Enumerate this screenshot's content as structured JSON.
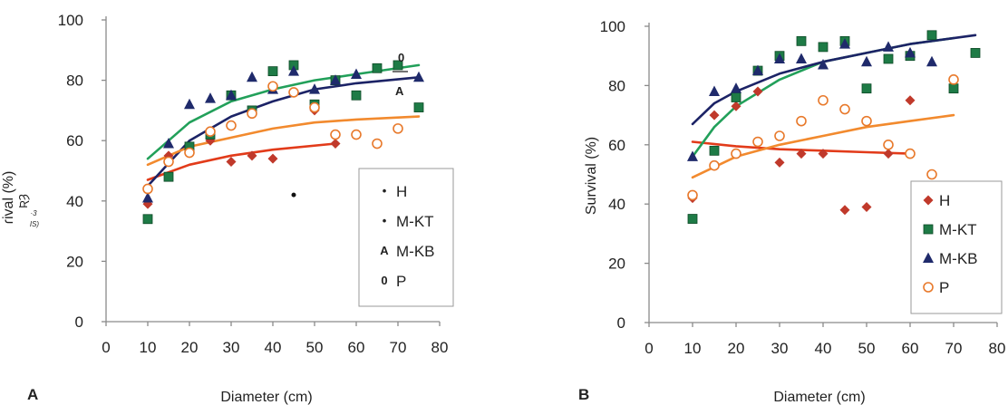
{
  "colors": {
    "H": "#c0392b",
    "M-KT": "#1e7b46",
    "M-KB": "#1f2a6b",
    "P": "#e8792b",
    "H_line": "#e23b1a",
    "M-KT_line": "#22a05a",
    "M-KB_line": "#1c2366",
    "P_line": "#f28a2e",
    "axis": "#8a8a8a"
  },
  "panels": {
    "A": {
      "letter": "A",
      "xlabel": "Diameter (cm)",
      "ylabel_fragments": [
        "ɾival (%)",
        "ƦȜ",
        "·3",
        "IS)"
      ],
      "legend": [
        {
          "symbol": "•",
          "label": "H"
        },
        {
          "symbol": "•",
          "label": "M-KT"
        },
        {
          "symbol": "A",
          "label": "M-KB"
        },
        {
          "symbol": "0",
          "label": "P"
        }
      ],
      "inplot_marks": [
        "0",
        "A"
      ]
    },
    "B": {
      "letter": "B",
      "xlabel": "Diameter (cm)",
      "ylabel": "Survival (%)",
      "legend": [
        {
          "symbol": "diamond",
          "label": "H"
        },
        {
          "symbol": "square",
          "label": "M-KT"
        },
        {
          "symbol": "triangle",
          "label": "M-KB"
        },
        {
          "symbol": "circle",
          "label": "P"
        }
      ]
    }
  },
  "chart_data": [
    {
      "type": "scatter",
      "panel": "A",
      "xlabel": "Diameter (cm)",
      "ylabel": "",
      "xlim": [
        0,
        80
      ],
      "ylim": [
        0,
        100
      ],
      "xticks": [
        0,
        10,
        20,
        30,
        40,
        50,
        60,
        70,
        80
      ],
      "yticks": [
        0,
        20,
        40,
        60,
        80,
        100
      ],
      "legend_position": "lower-right",
      "grid": false,
      "series": [
        {
          "name": "H",
          "marker": "diamond",
          "points": [
            [
              10,
              39
            ],
            [
              15,
              55
            ],
            [
              20,
              57
            ],
            [
              25,
              60
            ],
            [
              30,
              53
            ],
            [
              35,
              55
            ],
            [
              40,
              54
            ],
            [
              50,
              70
            ],
            [
              55,
              59
            ]
          ],
          "trend": [
            [
              10,
              47
            ],
            [
              20,
              52
            ],
            [
              30,
              55
            ],
            [
              40,
              57
            ],
            [
              55,
              59
            ]
          ]
        },
        {
          "name": "M-KT",
          "marker": "square",
          "points": [
            [
              10,
              34
            ],
            [
              15,
              48
            ],
            [
              20,
              58
            ],
            [
              25,
              62
            ],
            [
              30,
              75
            ],
            [
              35,
              70
            ],
            [
              40,
              83
            ],
            [
              45,
              85
            ],
            [
              50,
              72
            ],
            [
              55,
              80
            ],
            [
              60,
              75
            ],
            [
              65,
              84
            ],
            [
              70,
              85
            ],
            [
              75,
              71
            ]
          ],
          "trend": [
            [
              10,
              54
            ],
            [
              20,
              66
            ],
            [
              30,
              73
            ],
            [
              40,
              77
            ],
            [
              50,
              80
            ],
            [
              60,
              82
            ],
            [
              75,
              85
            ]
          ]
        },
        {
          "name": "M-KB",
          "marker": "triangle",
          "points": [
            [
              10,
              41
            ],
            [
              15,
              59
            ],
            [
              20,
              72
            ],
            [
              25,
              74
            ],
            [
              30,
              75
            ],
            [
              35,
              81
            ],
            [
              40,
              77
            ],
            [
              45,
              83
            ],
            [
              50,
              77
            ],
            [
              55,
              80
            ],
            [
              60,
              82
            ],
            [
              75,
              81
            ]
          ],
          "trend": [
            [
              10,
              45
            ],
            [
              20,
              60
            ],
            [
              30,
              68
            ],
            [
              40,
              73
            ],
            [
              50,
              77
            ],
            [
              60,
              79
            ],
            [
              75,
              81
            ]
          ]
        },
        {
          "name": "P",
          "marker": "circle",
          "points": [
            [
              10,
              44
            ],
            [
              15,
              53
            ],
            [
              20,
              56
            ],
            [
              25,
              63
            ],
            [
              30,
              65
            ],
            [
              35,
              69
            ],
            [
              40,
              78
            ],
            [
              45,
              76
            ],
            [
              50,
              71
            ],
            [
              55,
              62
            ],
            [
              60,
              62
            ],
            [
              65,
              59
            ],
            [
              70,
              64
            ]
          ],
          "trend": [
            [
              10,
              52
            ],
            [
              20,
              58
            ],
            [
              30,
              61
            ],
            [
              40,
              64
            ],
            [
              50,
              66
            ],
            [
              60,
              67
            ],
            [
              75,
              68
            ]
          ]
        }
      ],
      "extra_points": [
        [
          45,
          42
        ]
      ]
    },
    {
      "type": "scatter",
      "panel": "B",
      "xlabel": "Diameter (cm)",
      "ylabel": "Survival (%)",
      "xlim": [
        0,
        80
      ],
      "ylim": [
        0,
        100
      ],
      "xticks": [
        0,
        10,
        20,
        30,
        40,
        50,
        60,
        70,
        80
      ],
      "yticks": [
        0,
        20,
        40,
        60,
        80,
        100
      ],
      "legend_position": "lower-right",
      "grid": false,
      "series": [
        {
          "name": "H",
          "marker": "diamond",
          "points": [
            [
              10,
              42
            ],
            [
              15,
              70
            ],
            [
              20,
              73
            ],
            [
              25,
              78
            ],
            [
              30,
              54
            ],
            [
              35,
              57
            ],
            [
              40,
              57
            ],
            [
              45,
              38
            ],
            [
              50,
              39
            ],
            [
              55,
              57
            ],
            [
              60,
              75
            ]
          ],
          "trend": [
            [
              10,
              61
            ],
            [
              20,
              59.5
            ],
            [
              30,
              58.5
            ],
            [
              40,
              58
            ],
            [
              50,
              57.5
            ],
            [
              60,
              57
            ]
          ]
        },
        {
          "name": "M-KT",
          "marker": "square",
          "points": [
            [
              10,
              35
            ],
            [
              15,
              58
            ],
            [
              20,
              76
            ],
            [
              25,
              85
            ],
            [
              30,
              90
            ],
            [
              35,
              95
            ],
            [
              40,
              93
            ],
            [
              45,
              95
            ],
            [
              50,
              79
            ],
            [
              55,
              89
            ],
            [
              60,
              90
            ],
            [
              65,
              97
            ],
            [
              70,
              79
            ],
            [
              75,
              91
            ]
          ],
          "trend": [
            [
              10,
              56
            ],
            [
              15,
              66
            ],
            [
              20,
              73
            ],
            [
              30,
              82
            ],
            [
              40,
              88
            ],
            [
              50,
              91
            ],
            [
              60,
              94
            ],
            [
              70,
              96
            ]
          ]
        },
        {
          "name": "M-KB",
          "marker": "triangle",
          "points": [
            [
              10,
              56
            ],
            [
              15,
              78
            ],
            [
              20,
              79
            ],
            [
              25,
              85
            ],
            [
              30,
              89
            ],
            [
              35,
              89
            ],
            [
              40,
              87
            ],
            [
              45,
              94
            ],
            [
              50,
              88
            ],
            [
              55,
              93
            ],
            [
              60,
              91
            ],
            [
              65,
              88
            ]
          ],
          "trend": [
            [
              10,
              67
            ],
            [
              15,
              74
            ],
            [
              20,
              78
            ],
            [
              30,
              84
            ],
            [
              40,
              88
            ],
            [
              50,
              91
            ],
            [
              60,
              94
            ],
            [
              75,
              97
            ]
          ]
        },
        {
          "name": "P",
          "marker": "circle",
          "points": [
            [
              10,
              43
            ],
            [
              15,
              53
            ],
            [
              20,
              57
            ],
            [
              25,
              61
            ],
            [
              30,
              63
            ],
            [
              35,
              68
            ],
            [
              40,
              75
            ],
            [
              45,
              72
            ],
            [
              50,
              68
            ],
            [
              55,
              60
            ],
            [
              60,
              57
            ],
            [
              65,
              50
            ],
            [
              70,
              82
            ]
          ],
          "trend": [
            [
              10,
              49
            ],
            [
              20,
              56
            ],
            [
              30,
              60
            ],
            [
              40,
              63
            ],
            [
              50,
              66
            ],
            [
              60,
              68
            ],
            [
              70,
              70
            ]
          ]
        }
      ]
    }
  ]
}
